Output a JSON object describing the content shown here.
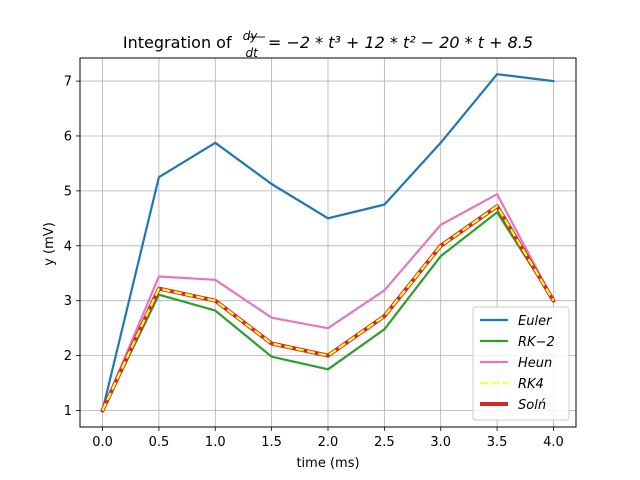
{
  "chart_data": {
    "type": "line",
    "title_prefix": "Integration of",
    "title_frac_num": "dy",
    "title_frac_den": "dt",
    "title_expr": "= −2 * t³ + 12 * t² − 20 * t + 8.5",
    "xlabel": "time (ms)",
    "ylabel": "y (mV)",
    "xlim": [
      -0.2,
      4.2
    ],
    "ylim": [
      0.7,
      7.42
    ],
    "xticks": [
      0.0,
      0.5,
      1.0,
      1.5,
      2.0,
      2.5,
      3.0,
      3.5,
      4.0
    ],
    "xtick_labels": [
      "0.0",
      "0.5",
      "1.0",
      "1.5",
      "2.0",
      "2.5",
      "3.0",
      "3.5",
      "4.0"
    ],
    "yticks": [
      1,
      2,
      3,
      4,
      5,
      6,
      7
    ],
    "ytick_labels": [
      "1",
      "2",
      "3",
      "4",
      "5",
      "6",
      "7"
    ],
    "grid": true,
    "legend_position": "lower-right",
    "x": [
      0.0,
      0.5,
      1.0,
      1.5,
      2.0,
      2.5,
      3.0,
      3.5,
      4.0
    ],
    "series": [
      {
        "name": "Euler",
        "color": "#1f77b4",
        "style": "solid",
        "width": 2.2,
        "values": [
          1.0,
          5.25,
          5.875,
          5.125,
          4.5,
          4.75,
          5.875,
          7.125,
          7.0
        ]
      },
      {
        "name": "RK−2",
        "color": "#2ca02c",
        "style": "solid",
        "width": 2.2,
        "values": [
          1.0,
          3.11,
          2.82,
          1.98,
          1.75,
          2.48,
          3.81,
          4.61,
          3.0
        ]
      },
      {
        "name": "Heun",
        "color": "#e377c2",
        "style": "solid",
        "width": 2.2,
        "values": [
          1.0,
          3.44,
          3.38,
          2.69,
          2.5,
          3.19,
          4.38,
          4.94,
          3.0
        ]
      },
      {
        "name": "RK4",
        "color": "#ffff33",
        "style": "dashed",
        "width": 2.2,
        "values": [
          1.0,
          3.22,
          3.0,
          2.22,
          2.0,
          2.72,
          4.0,
          4.72,
          3.0
        ]
      },
      {
        "name": "Solń",
        "color": "#d62728",
        "style": "solid",
        "width": 4.0,
        "values": [
          1.0,
          3.22,
          3.0,
          2.22,
          2.0,
          2.72,
          4.0,
          4.72,
          3.0
        ]
      }
    ]
  }
}
